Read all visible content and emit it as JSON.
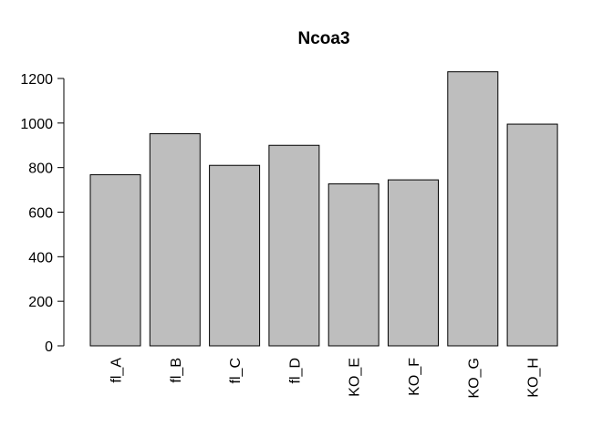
{
  "chart_data": {
    "type": "bar",
    "title": "Ncoa3",
    "xlabel": "",
    "ylabel": "",
    "categories": [
      "fl_A",
      "fl_B",
      "fl_C",
      "fl_D",
      "KO_E",
      "KO_F",
      "KO_G",
      "KO_H"
    ],
    "values": [
      768,
      952,
      810,
      900,
      727,
      745,
      1230,
      995
    ],
    "ylim": [
      0,
      1200
    ],
    "yticks": [
      0,
      200,
      400,
      600,
      800,
      1000,
      1200
    ],
    "bar_color": "#bebebe",
    "grid": false,
    "legend": "none"
  }
}
